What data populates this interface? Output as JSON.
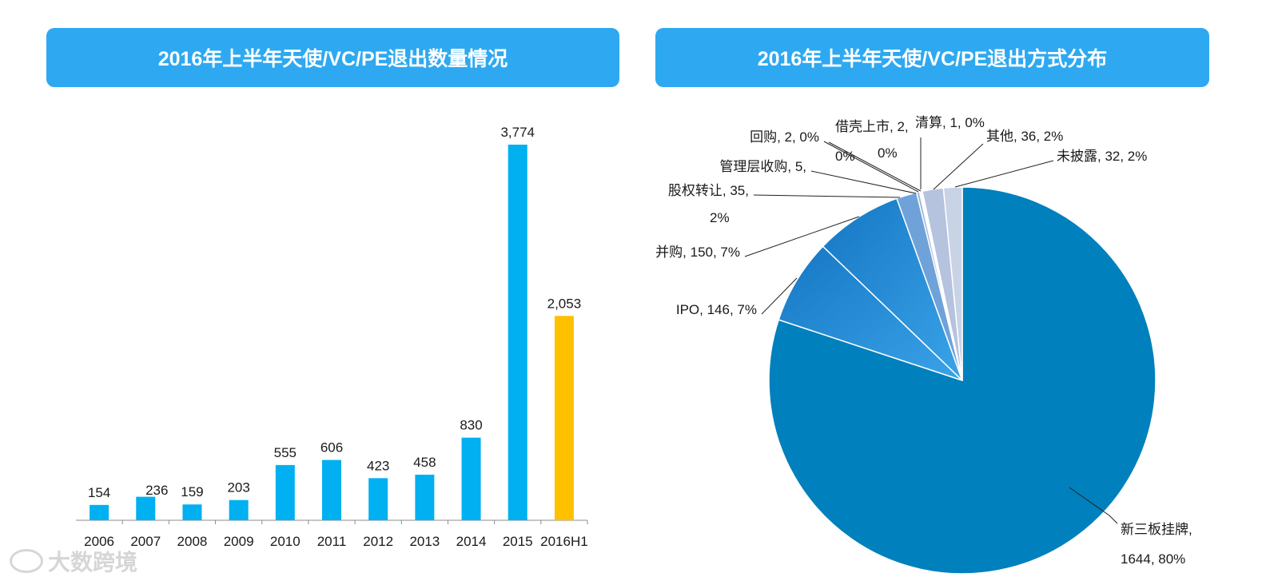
{
  "left_title": "2016年上半年天使/VC/PE退出数量情况",
  "right_title": "2016年上半年天使/VC/PE退出方式分布",
  "watermark": "大数跨境",
  "colors": {
    "banner": "#2ea9f1",
    "bar": "#00b0f0",
    "bar_highlight": "#ffc000"
  },
  "chart_data": [
    {
      "type": "bar",
      "title": "2016年上半年天使/VC/PE退出数量情况",
      "categories": [
        "2006",
        "2007",
        "2008",
        "2009",
        "2010",
        "2011",
        "2012",
        "2013",
        "2014",
        "2015",
        "2016H1"
      ],
      "values": [
        154,
        236,
        159,
        203,
        555,
        606,
        423,
        458,
        830,
        3774,
        2053
      ],
      "value_labels": [
        "154",
        "236",
        "159",
        "203",
        "555",
        "606",
        "423",
        "458",
        "830",
        "3,774",
        "2,053"
      ],
      "highlight_index": 10,
      "xlabel": "",
      "ylabel": "",
      "ylim": [
        0,
        4000
      ],
      "grid": false
    },
    {
      "type": "pie",
      "title": "2016年上半年天使/VC/PE退出方式分布",
      "slices": [
        {
          "name": "新三板挂牌",
          "value": 1644,
          "label_lines": [
            "新三板挂牌,",
            "1644, 80%"
          ],
          "color": "#0080bc"
        },
        {
          "name": "IPO",
          "value": 146,
          "label_lines": [
            "IPO, 146, 7%"
          ],
          "color": "#1c8fd6"
        },
        {
          "name": "并购",
          "value": 150,
          "label_lines": [
            "并购, 150, 7%"
          ],
          "color": "#2a92d8"
        },
        {
          "name": "股权转让",
          "value": 35,
          "label_lines": [
            "股权转让, 35,",
            "2%"
          ],
          "color": "#6fa2d9"
        },
        {
          "name": "管理层收购",
          "value": 5,
          "label_lines": [
            "管理层收购, 5,",
            "0%"
          ],
          "color": "#9cb6dc"
        },
        {
          "name": "回购",
          "value": 2,
          "label_lines": [
            "回购, 2, 0%"
          ],
          "color": "#aab9d6"
        },
        {
          "name": "借壳上市",
          "value": 2,
          "label_lines": [
            "借壳上市, 2,",
            "0%"
          ],
          "color": "#b7c2da"
        },
        {
          "name": "清算",
          "value": 1,
          "label_lines": [
            "清算, 1, 0%"
          ],
          "color": "#c3cbe0"
        },
        {
          "name": "其他",
          "value": 36,
          "label_lines": [
            "其他, 36, 2%"
          ],
          "color": "#b5c3df"
        },
        {
          "name": "未披露",
          "value": 32,
          "label_lines": [
            "未披露, 32, 2%"
          ],
          "color": "#c9d3e6"
        }
      ]
    }
  ]
}
